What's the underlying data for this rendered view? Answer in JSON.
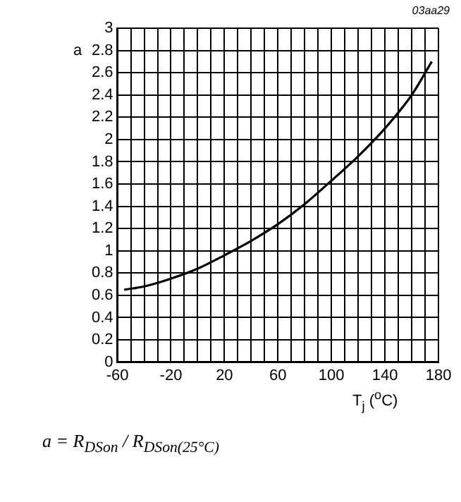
{
  "chart_data": {
    "type": "line",
    "xlabel": "T$_{j}$ ($^{o}$C)",
    "ylabel": "a",
    "annotations": [
      "03aa29",
      "a = R$_{DSon}$ / R$_{DSon(25°C)}$"
    ],
    "series": [
      {
        "color": "#000000",
        "x": [
          -55,
          -40,
          -20,
          0,
          20,
          40,
          60,
          80,
          100,
          120,
          140,
          160,
          175
        ],
        "values": [
          0.65,
          0.68,
          0.75,
          0.84,
          0.96,
          1.09,
          1.24,
          1.42,
          1.63,
          1.85,
          2.1,
          2.4,
          2.7
        ]
      }
    ],
    "xlim": [
      -60,
      180
    ],
    "xticks": [
      -60,
      {
        "value": -50,
        "label": null
      },
      {
        "value": -40,
        "label": null
      },
      {
        "value": -30,
        "label": null
      },
      -20,
      {
        "value": -10,
        "label": null
      },
      {
        "value": 0,
        "label": null
      },
      {
        "value": 10,
        "label": null
      },
      20,
      {
        "value": 30,
        "label": null
      },
      {
        "value": 40,
        "label": null
      },
      {
        "value": 50,
        "label": null
      },
      60,
      {
        "value": 70,
        "label": null
      },
      {
        "value": 80,
        "label": null
      },
      {
        "value": 90,
        "label": null
      },
      100,
      {
        "value": 110,
        "label": null
      },
      {
        "value": 120,
        "label": null
      },
      {
        "value": 130,
        "label": null
      },
      140,
      {
        "value": 150,
        "label": null
      },
      {
        "value": 160,
        "label": null
      },
      {
        "value": 170,
        "label": null
      },
      180
    ],
    "ylim": [
      0,
      3
    ],
    "yticks": [
      0,
      0.2,
      0.4,
      0.6,
      0.8,
      1,
      1.2,
      1.4,
      1.6,
      1.8,
      2,
      2.2,
      2.4,
      2.6,
      2.8,
      3
    ],
    "grid": true,
    "legend": false,
    "marker": "none",
    "line_style": "solid"
  }
}
